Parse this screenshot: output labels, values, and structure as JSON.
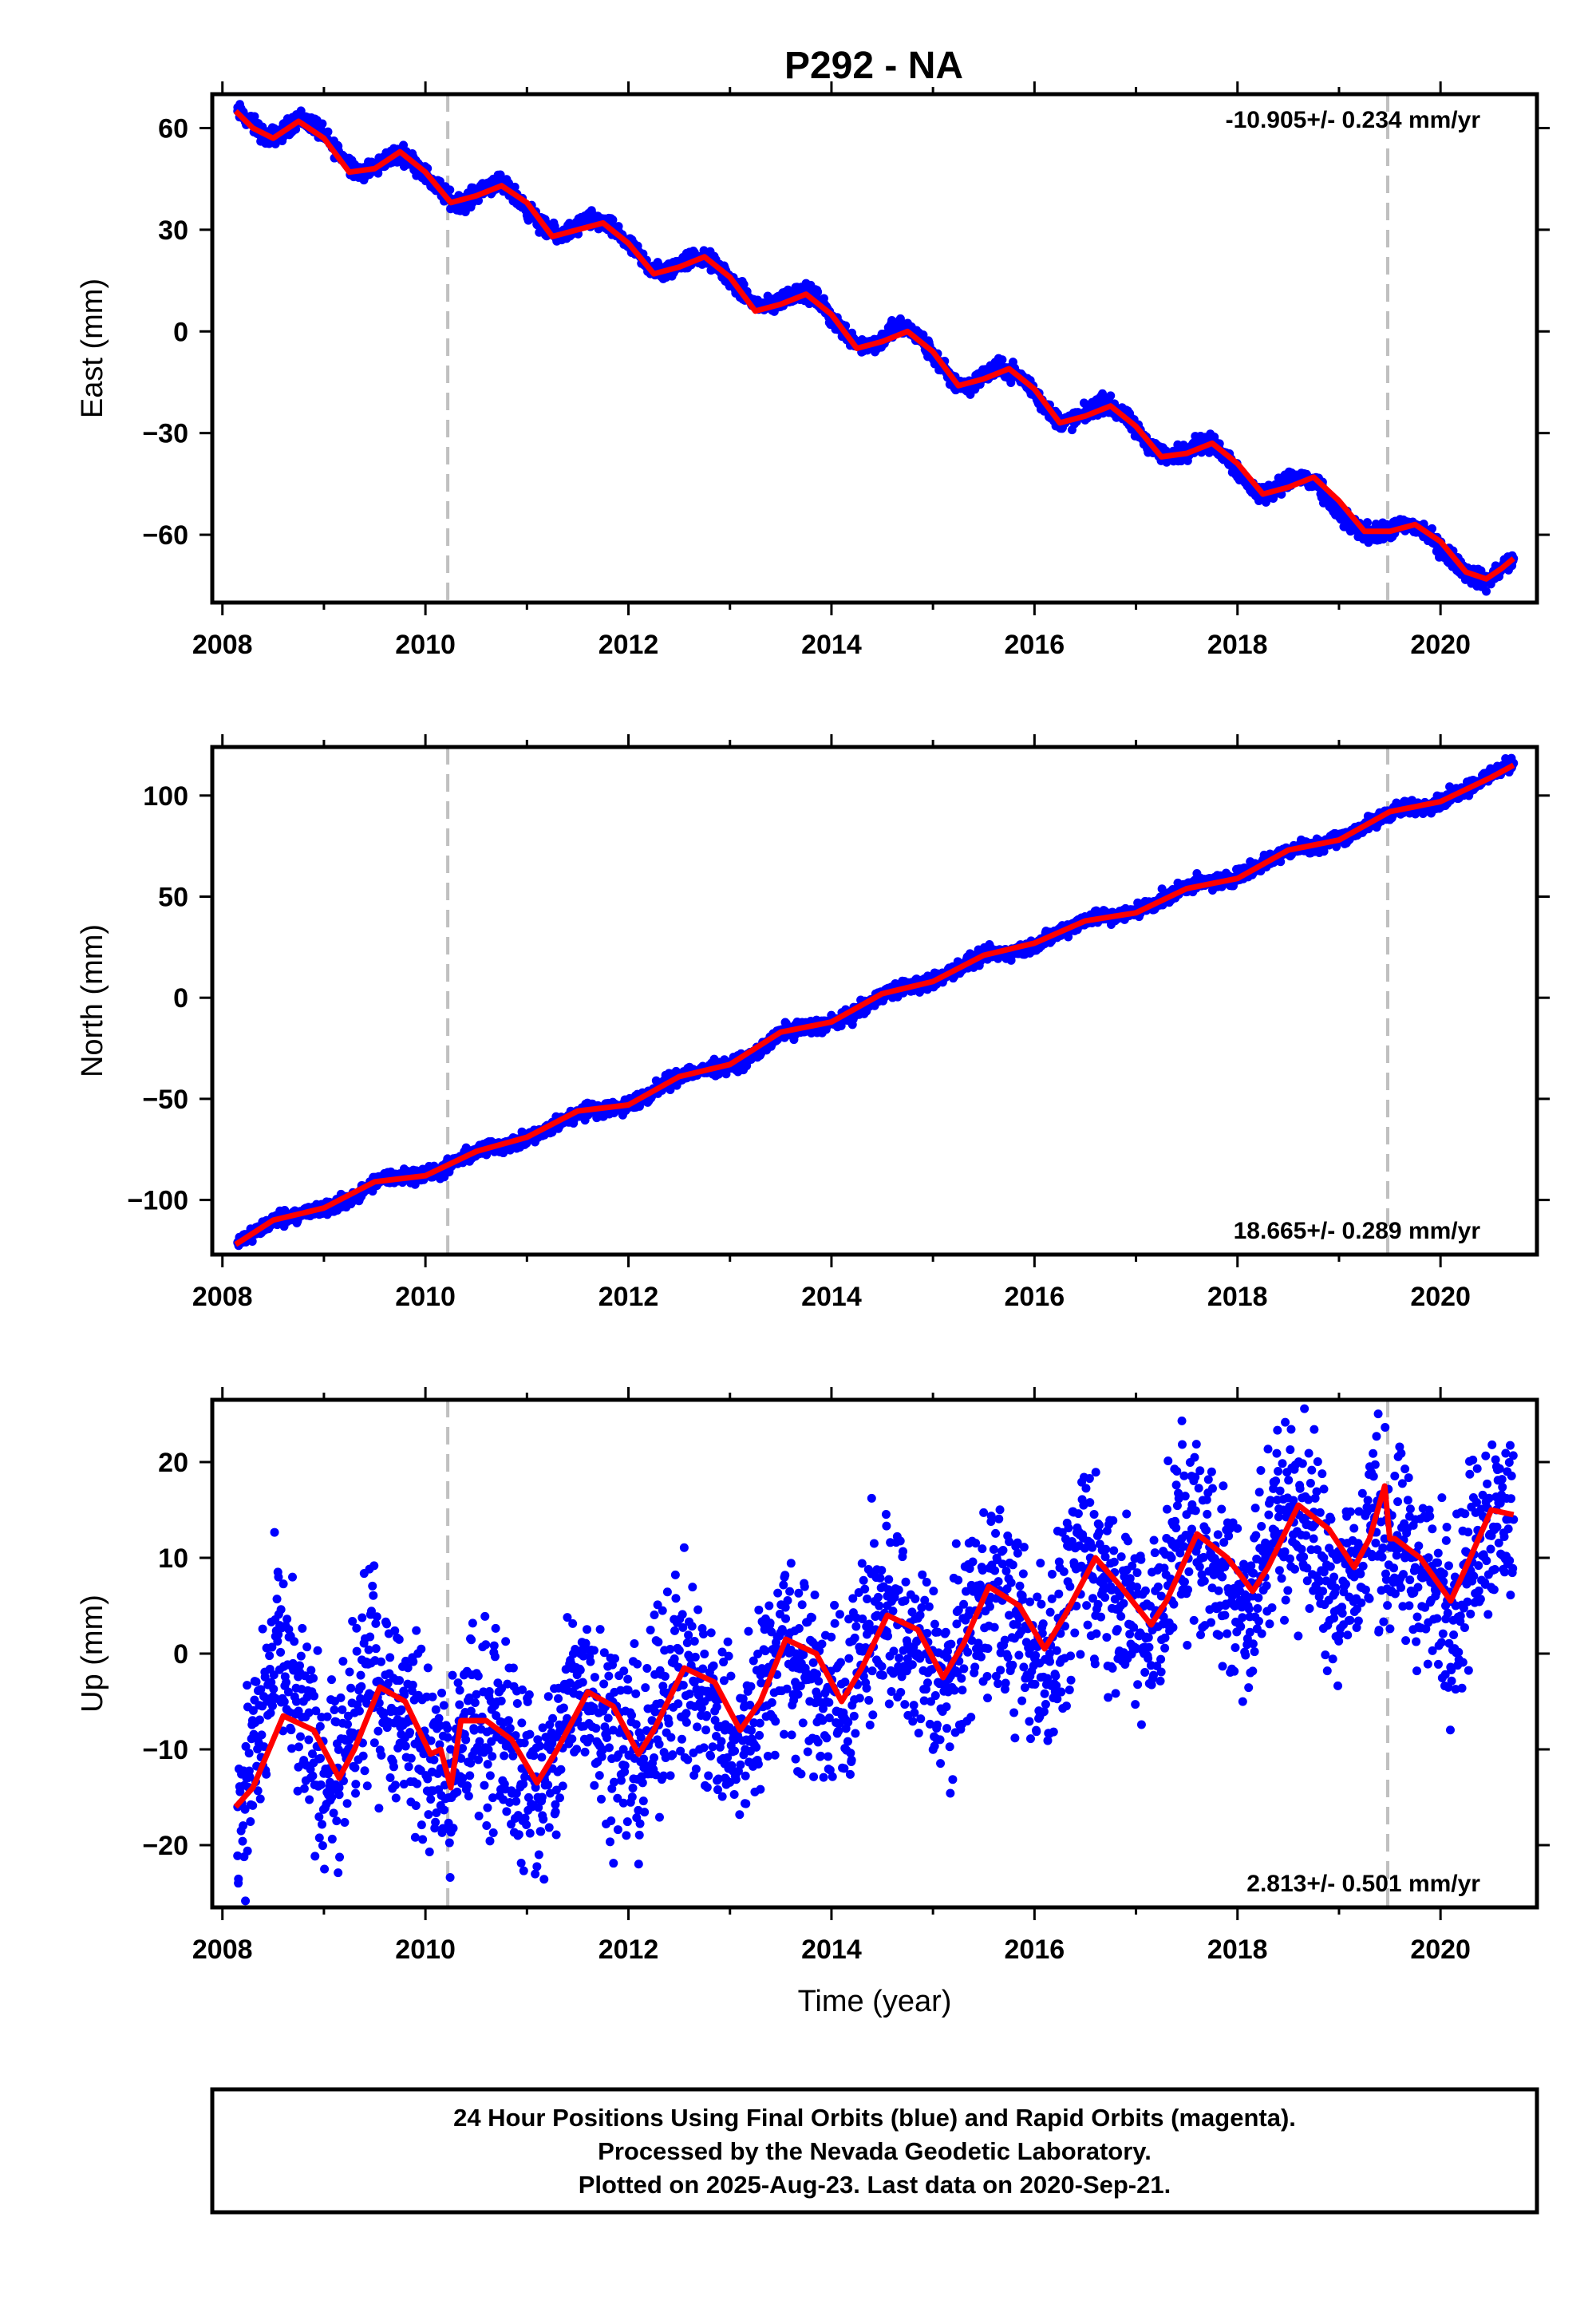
{
  "title": "P292 - NA",
  "footer": {
    "lines": [
      "24 Hour Positions Using Final Orbits (blue) and Rapid Orbits (magenta).",
      "Processed by the Nevada Geodetic Laboratory.",
      "Plotted on 2025-Aug-23. Last data on 2020-Sep-21."
    ]
  },
  "colors": {
    "data_points": "#0000ff",
    "model_fit": "#ff0000",
    "event_lines": "#c0c0c0",
    "frame": "#000000"
  },
  "chart_data": [
    {
      "type": "scatter",
      "ylabel": "East (mm)",
      "xlabel": "",
      "rate_text": "-10.905+/- 0.234 mm/yr",
      "rate_position": "top-right",
      "xlim": [
        2007.9,
        2020.95
      ],
      "ylim": [
        -80,
        70
      ],
      "x_ticks": [
        2008,
        2010,
        2012,
        2014,
        2016,
        2018,
        2020
      ],
      "y_ticks": [
        60,
        30,
        0,
        -30,
        -60
      ],
      "y_tick_labels": [
        "60",
        "30",
        "0",
        "−30",
        "−60"
      ],
      "event_lines_x": [
        2010.22,
        2019.48
      ],
      "series": [
        {
          "type": "model_fit",
          "x": [
            2008.13,
            2008.3,
            2008.5,
            2008.75,
            2009.0,
            2009.25,
            2009.5,
            2009.75,
            2010.0,
            2010.25,
            2010.5,
            2010.75,
            2011.0,
            2011.25,
            2011.5,
            2011.75,
            2012.0,
            2012.25,
            2012.5,
            2012.75,
            2013.0,
            2013.25,
            2013.5,
            2013.75,
            2014.0,
            2014.25,
            2014.5,
            2014.75,
            2015.0,
            2015.25,
            2015.5,
            2015.75,
            2016.0,
            2016.25,
            2016.5,
            2016.75,
            2017.0,
            2017.25,
            2017.5,
            2017.75,
            2018.0,
            2018.25,
            2018.5,
            2018.75,
            2019.0,
            2019.25,
            2019.5,
            2019.75,
            2020.0,
            2020.25,
            2020.45,
            2020.6,
            2020.72
          ],
          "y": [
            65,
            60,
            57,
            62,
            57,
            47,
            48,
            53,
            47,
            38,
            40,
            43,
            38,
            28,
            30,
            32,
            26,
            17,
            19,
            22,
            16,
            6,
            8,
            11,
            5,
            -5,
            -3,
            0,
            -6,
            -16,
            -14,
            -11,
            -17,
            -27,
            -25,
            -22,
            -28,
            -37,
            -36,
            -33,
            -39,
            -48,
            -46,
            -43,
            -50,
            -59,
            -59,
            -57,
            -62,
            -71,
            -73,
            -70,
            -67
          ]
        },
        {
          "type": "observations",
          "x": [
            2008.15,
            2008.3,
            2008.45,
            2008.6,
            2008.75,
            2008.9,
            2009.05,
            2009.2,
            2009.35,
            2009.5,
            2009.65,
            2009.8,
            2009.95,
            2010.1,
            2010.25,
            2010.4,
            2010.55,
            2010.7,
            2010.85,
            2011.0,
            2011.15,
            2011.3,
            2011.45,
            2011.6,
            2011.75,
            2011.9,
            2012.05,
            2012.2,
            2012.35,
            2012.5,
            2012.65,
            2012.8,
            2012.95,
            2013.1,
            2013.25,
            2013.4,
            2013.55,
            2013.7,
            2013.85,
            2014.0,
            2014.15,
            2014.3,
            2014.45,
            2014.6,
            2014.75,
            2014.9,
            2015.05,
            2015.2,
            2015.35,
            2015.5,
            2015.65,
            2015.8,
            2015.95,
            2016.1,
            2016.25,
            2016.4,
            2016.55,
            2016.7,
            2016.85,
            2017.0,
            2017.15,
            2017.3,
            2017.45,
            2017.6,
            2017.75,
            2017.9,
            2018.05,
            2018.2,
            2018.35,
            2018.5,
            2018.65,
            2018.8,
            2018.95,
            2019.1,
            2019.25,
            2019.4,
            2019.55,
            2019.7,
            2019.85,
            2020.0,
            2020.15,
            2020.3,
            2020.45,
            2020.6,
            2020.72
          ],
          "y": [
            65,
            61,
            57,
            59,
            63,
            61,
            56,
            51,
            47,
            48,
            52,
            52,
            48,
            43,
            39,
            38,
            42,
            44,
            41,
            36,
            31,
            28,
            30,
            33,
            32,
            29,
            24,
            19,
            17,
            20,
            22,
            21,
            17,
            12,
            8,
            7,
            10,
            12,
            10,
            4,
            -1,
            -4,
            -4,
            1,
            1,
            -3,
            -9,
            -15,
            -16,
            -13,
            -11,
            -12,
            -16,
            -22,
            -27,
            -26,
            -23,
            -21,
            -24,
            -29,
            -34,
            -37,
            -36,
            -33,
            -33,
            -37,
            -43,
            -48,
            -47,
            -44,
            -43,
            -46,
            -52,
            -57,
            -59,
            -60,
            -58,
            -57,
            -59,
            -64,
            -68,
            -72,
            -74,
            -70,
            -67
          ]
        }
      ]
    },
    {
      "type": "scatter",
      "ylabel": "North (mm)",
      "xlabel": "",
      "rate_text": "18.665+/- 0.289 mm/yr",
      "rate_position": "bottom-right",
      "xlim": [
        2007.9,
        2020.95
      ],
      "ylim": [
        -127,
        124
      ],
      "x_ticks": [
        2008,
        2010,
        2012,
        2014,
        2016,
        2018,
        2020
      ],
      "y_ticks": [
        100,
        50,
        0,
        -50,
        -100
      ],
      "y_tick_labels": [
        "100",
        "50",
        "0",
        "−50",
        "−100"
      ],
      "event_lines_x": [
        2010.22,
        2019.48
      ],
      "series": [
        {
          "type": "model_fit",
          "x": [
            2008.13,
            2008.5,
            2009.0,
            2009.5,
            2010.0,
            2010.5,
            2011.0,
            2011.5,
            2012.0,
            2012.5,
            2013.0,
            2013.5,
            2014.0,
            2014.5,
            2015.0,
            2015.5,
            2016.0,
            2016.5,
            2017.0,
            2017.5,
            2018.0,
            2018.5,
            2019.0,
            2019.5,
            2020.0,
            2020.5,
            2020.72
          ],
          "y": [
            -122,
            -110,
            -104,
            -91,
            -88,
            -76,
            -69,
            -56,
            -53,
            -39,
            -33,
            -17,
            -12,
            2,
            8,
            21,
            27,
            38,
            42,
            54,
            59,
            73,
            78,
            92,
            97,
            109,
            115
          ]
        },
        {
          "type": "observations",
          "x": [
            2008.15,
            2008.35,
            2008.55,
            2008.75,
            2008.95,
            2009.15,
            2009.35,
            2009.55,
            2009.75,
            2009.95,
            2010.15,
            2010.35,
            2010.55,
            2010.75,
            2010.95,
            2011.15,
            2011.35,
            2011.55,
            2011.75,
            2011.95,
            2012.15,
            2012.35,
            2012.55,
            2012.75,
            2012.95,
            2013.15,
            2013.35,
            2013.55,
            2013.75,
            2013.95,
            2014.15,
            2014.35,
            2014.55,
            2014.75,
            2014.95,
            2015.15,
            2015.35,
            2015.55,
            2015.75,
            2015.95,
            2016.15,
            2016.35,
            2016.55,
            2016.75,
            2016.95,
            2017.15,
            2017.35,
            2017.55,
            2017.75,
            2017.95,
            2018.15,
            2018.35,
            2018.55,
            2018.75,
            2018.95,
            2019.15,
            2019.35,
            2019.55,
            2019.75,
            2019.95,
            2020.15,
            2020.35,
            2020.55,
            2020.72
          ],
          "y": [
            -121,
            -115,
            -109,
            -107,
            -105,
            -102,
            -97,
            -90,
            -88,
            -88,
            -86,
            -80,
            -75,
            -73,
            -71,
            -67,
            -61,
            -56,
            -55,
            -54,
            -50,
            -43,
            -37,
            -36,
            -34,
            -31,
            -24,
            -16,
            -15,
            -13,
            -10,
            -4,
            3,
            5,
            7,
            12,
            17,
            22,
            22,
            25,
            30,
            35,
            40,
            40,
            42,
            46,
            51,
            56,
            57,
            59,
            64,
            69,
            74,
            75,
            78,
            82,
            87,
            93,
            94,
            96,
            101,
            106,
            112,
            116
          ]
        }
      ]
    },
    {
      "type": "scatter",
      "ylabel": "Up (mm)",
      "xlabel": "Time (year)",
      "rate_text": "2.813+/- 0.501 mm/yr",
      "rate_position": "bottom-right",
      "xlim": [
        2007.9,
        2020.95
      ],
      "ylim": [
        -26.5,
        26.5
      ],
      "x_ticks": [
        2008,
        2010,
        2012,
        2014,
        2016,
        2018,
        2020
      ],
      "y_ticks": [
        20,
        10,
        0,
        -10,
        -20
      ],
      "y_tick_labels": [
        "20",
        "10",
        "0",
        "−10",
        "−20"
      ],
      "event_lines_x": [
        2010.22,
        2019.48
      ],
      "series": [
        {
          "type": "model_fit",
          "x": [
            2008.13,
            2008.3,
            2008.6,
            2008.9,
            2009.15,
            2009.3,
            2009.55,
            2009.8,
            2010.05,
            2010.15,
            2010.25,
            2010.35,
            2010.6,
            2010.85,
            2011.1,
            2011.3,
            2011.6,
            2011.85,
            2012.1,
            2012.25,
            2012.55,
            2012.85,
            2013.1,
            2013.3,
            2013.55,
            2013.85,
            2014.1,
            2014.3,
            2014.55,
            2014.85,
            2015.1,
            2015.3,
            2015.55,
            2015.85,
            2016.1,
            2016.3,
            2016.6,
            2016.85,
            2017.15,
            2017.3,
            2017.6,
            2017.9,
            2018.15,
            2018.3,
            2018.6,
            2018.9,
            2019.15,
            2019.3,
            2019.45,
            2019.5,
            2019.55,
            2019.8,
            2020.1,
            2020.25,
            2020.5,
            2020.72
          ],
          "y": [
            -16,
            -14,
            -6.5,
            -8,
            -13,
            -10,
            -3.5,
            -5,
            -10.5,
            -10,
            -14,
            -7,
            -7,
            -9,
            -13.5,
            -10,
            -4,
            -5.5,
            -10.5,
            -8,
            -1.5,
            -3,
            -8,
            -5,
            1.5,
            0,
            -5,
            -1.5,
            4,
            2.5,
            -2.5,
            1,
            7,
            5,
            0.5,
            4,
            10,
            7,
            3,
            5.5,
            12.5,
            10,
            6.5,
            9,
            15.5,
            13,
            9,
            12,
            17.5,
            12,
            12,
            10,
            5.5,
            9,
            15,
            14.5
          ]
        },
        {
          "type": "observations",
          "x": [
            2008.15,
            2008.25,
            2008.35,
            2008.45,
            2008.55,
            2008.65,
            2008.75,
            2008.85,
            2008.95,
            2009.05,
            2009.15,
            2009.25,
            2009.35,
            2009.45,
            2009.55,
            2009.65,
            2009.75,
            2009.85,
            2009.95,
            2010.05,
            2010.15,
            2010.25,
            2010.35,
            2010.45,
            2010.55,
            2010.65,
            2010.75,
            2010.85,
            2010.95,
            2011.05,
            2011.15,
            2011.25,
            2011.35,
            2011.45,
            2011.55,
            2011.65,
            2011.75,
            2011.85,
            2011.95,
            2012.05,
            2012.15,
            2012.25,
            2012.35,
            2012.45,
            2012.55,
            2012.65,
            2012.75,
            2012.85,
            2012.95,
            2013.05,
            2013.15,
            2013.25,
            2013.35,
            2013.45,
            2013.55,
            2013.65,
            2013.75,
            2013.85,
            2013.95,
            2014.05,
            2014.15,
            2014.25,
            2014.35,
            2014.45,
            2014.55,
            2014.65,
            2014.75,
            2014.85,
            2014.95,
            2015.05,
            2015.15,
            2015.25,
            2015.35,
            2015.45,
            2015.55,
            2015.65,
            2015.75,
            2015.85,
            2015.95,
            2016.05,
            2016.15,
            2016.25,
            2016.35,
            2016.45,
            2016.55,
            2016.65,
            2016.75,
            2016.85,
            2016.95,
            2017.05,
            2017.15,
            2017.25,
            2017.35,
            2017.45,
            2017.55,
            2017.65,
            2017.75,
            2017.85,
            2017.95,
            2018.05,
            2018.15,
            2018.25,
            2018.35,
            2018.45,
            2018.55,
            2018.65,
            2018.75,
            2018.85,
            2018.95,
            2019.05,
            2019.15,
            2019.25,
            2019.35,
            2019.45,
            2019.55,
            2019.65,
            2019.75,
            2019.85,
            2019.95,
            2020.05,
            2020.15,
            2020.25,
            2020.35,
            2020.45,
            2020.55,
            2020.65,
            2020.72
          ],
          "y": [
            -16,
            -13,
            -9,
            -5,
            2,
            -4,
            -6,
            -9,
            -11,
            -12,
            -14,
            -9,
            -6,
            -1,
            -3,
            -4,
            -6,
            -7,
            -9,
            -11,
            -12,
            -15,
            -10,
            -6,
            -7,
            -8,
            -9,
            -10,
            -12,
            -13,
            -15,
            -12,
            -8,
            -4,
            -3,
            -4,
            -6,
            -8,
            -10,
            -10,
            -11,
            -8,
            -4,
            -1,
            -2,
            -3,
            -5,
            -6,
            -8,
            -9,
            -10,
            -6,
            -2,
            0,
            1,
            0,
            -2,
            -4,
            -5,
            -6,
            -4,
            -2,
            2,
            4,
            5,
            3,
            1,
            0,
            -2,
            -3,
            -4,
            0,
            4,
            6,
            7,
            6,
            4,
            2,
            0,
            -1,
            0,
            3,
            7,
            9,
            10,
            9,
            7,
            5,
            3,
            2,
            3,
            6,
            10,
            12,
            13,
            12,
            10,
            8,
            6,
            5,
            6,
            9,
            13,
            15,
            16,
            14,
            12,
            10,
            8,
            7,
            8,
            11,
            14,
            12,
            11,
            10,
            9,
            8,
            6,
            5,
            5,
            8,
            12,
            14,
            15,
            14,
            14
          ]
        }
      ]
    }
  ]
}
